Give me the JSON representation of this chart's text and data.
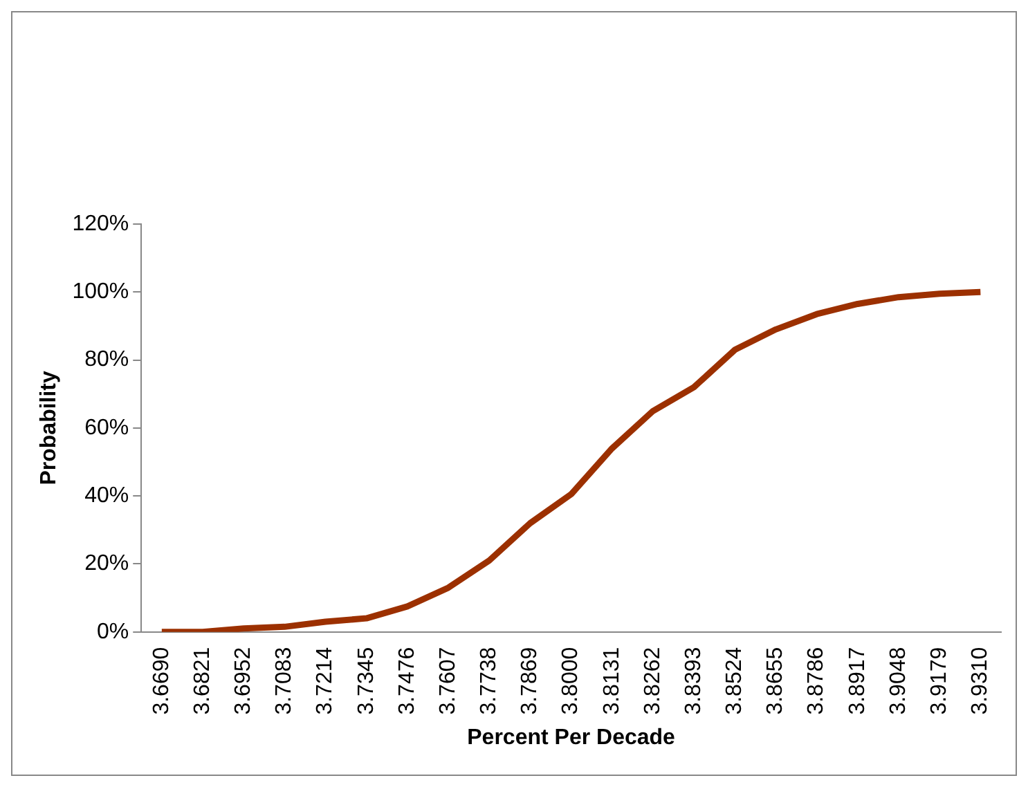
{
  "chart_data": {
    "type": "line",
    "xlabel": "Percent Per Decade",
    "ylabel": "Probability",
    "categories": [
      "3.6690",
      "3.6821",
      "3.6952",
      "3.7083",
      "3.7214",
      "3.7345",
      "3.7476",
      "3.7607",
      "3.7738",
      "3.7869",
      "3.8000",
      "3.8131",
      "3.8262",
      "3.8393",
      "3.8524",
      "3.8655",
      "3.8786",
      "3.8917",
      "3.9048",
      "3.9179",
      "3.9310"
    ],
    "series": [
      {
        "color": "#9c3000",
        "values": [
          0,
          0,
          1,
          1.5,
          3,
          4,
          7.5,
          13,
          21,
          32,
          40.5,
          54,
          65,
          72,
          83,
          89,
          93.5,
          96.5,
          98.5,
          99.5,
          100
        ]
      }
    ],
    "ylim": [
      0,
      120
    ],
    "yticks": [
      {
        "value": 0,
        "label": "0%"
      },
      {
        "value": 20,
        "label": "20%"
      },
      {
        "value": 40,
        "label": "40%"
      },
      {
        "value": 60,
        "label": "60%"
      },
      {
        "value": 80,
        "label": "80%"
      },
      {
        "value": 100,
        "label": "100%"
      },
      {
        "value": 120,
        "label": "120%"
      }
    ],
    "grid": false,
    "legend": false,
    "marker": "none",
    "line_style": "solid"
  }
}
